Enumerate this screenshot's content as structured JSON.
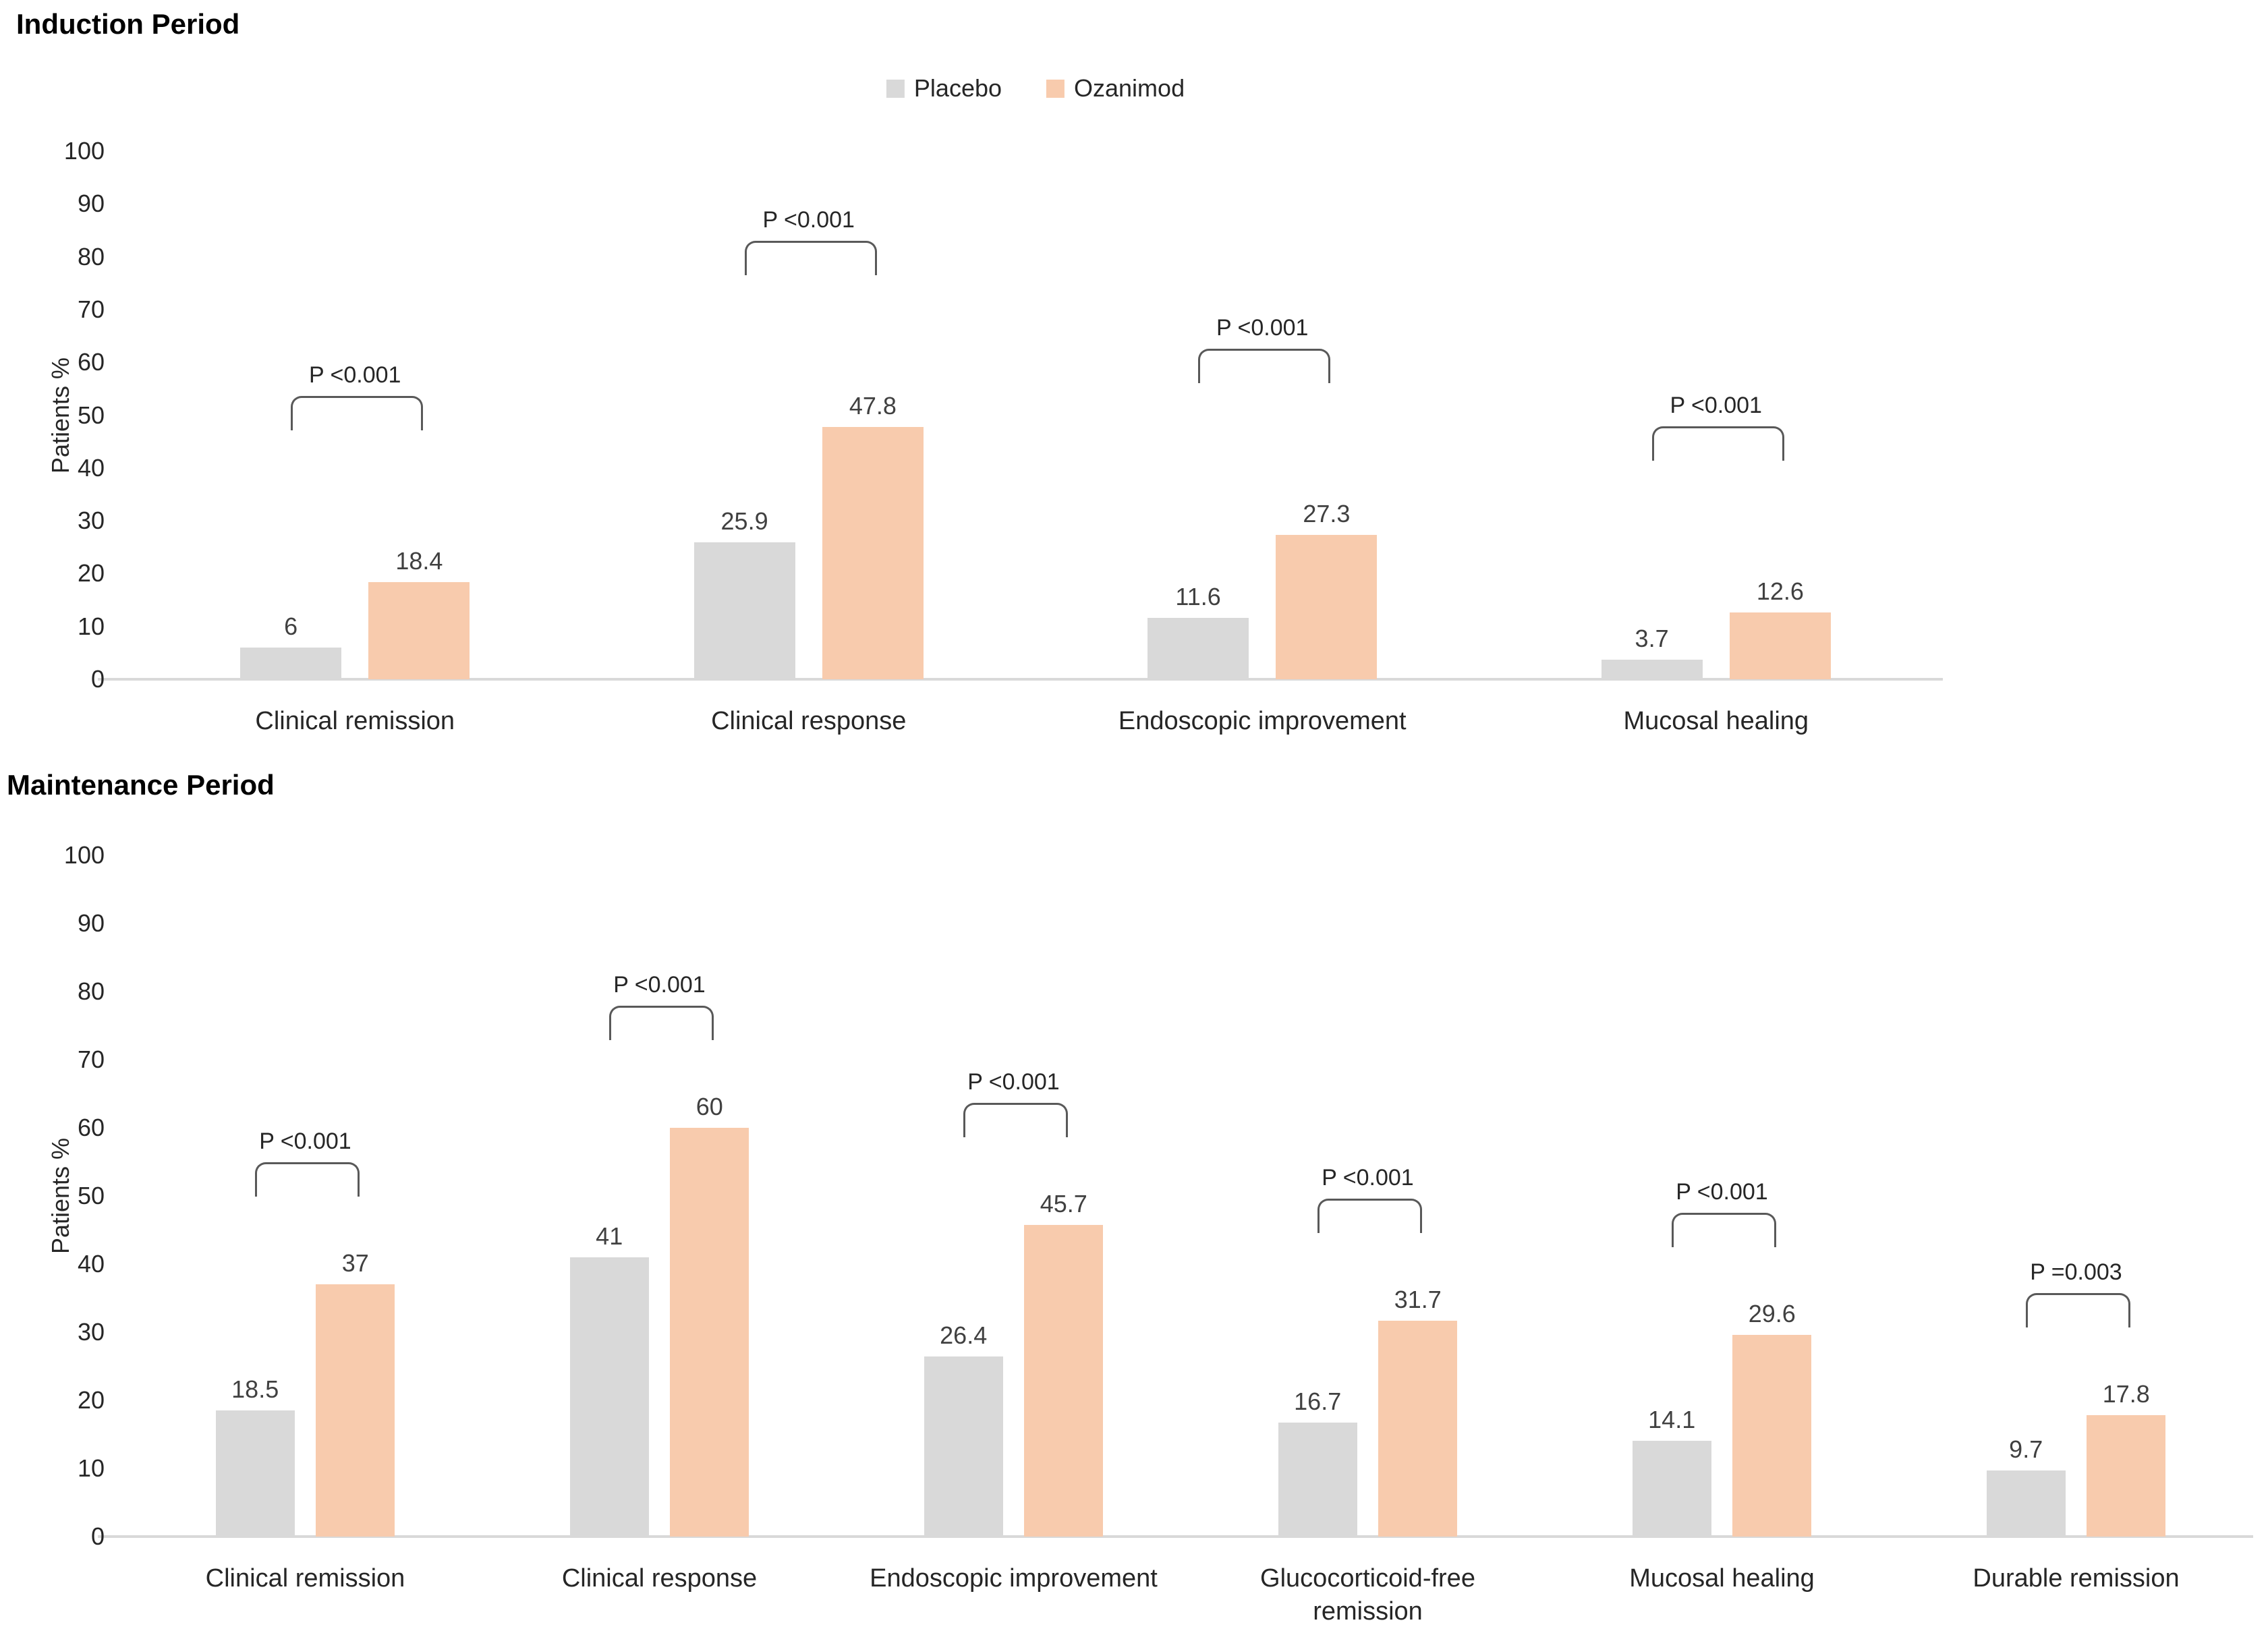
{
  "chart_data": [
    {
      "type": "bar",
      "title": "Induction Period",
      "ylabel": "Patients %",
      "ylim": [
        0,
        100
      ],
      "yticks": [
        0,
        10,
        20,
        30,
        40,
        50,
        60,
        70,
        80,
        90,
        100
      ],
      "grid": false,
      "legend": {
        "position": "top-center",
        "entries": [
          {
            "label": "Placebo",
            "color": "#D9D9D9"
          },
          {
            "label": "Ozanimod",
            "color": "#F8CBAD"
          }
        ]
      },
      "categories": [
        "Clinical remission",
        "Clinical response",
        "Endoscopic improvement",
        "Mucosal healing"
      ],
      "series": [
        {
          "name": "Placebo",
          "color": "#D9D9D9",
          "values": [
            6,
            25.9,
            11.6,
            3.7
          ]
        },
        {
          "name": "Ozanimod",
          "color": "#F8CBAD",
          "values": [
            18.4,
            47.8,
            27.3,
            12.6
          ]
        }
      ],
      "p_values": [
        "P <0.001",
        "P <0.001",
        "P <0.001",
        "P <0.001"
      ]
    },
    {
      "type": "bar",
      "title": "Maintenance Period",
      "ylabel": "Patients %",
      "ylim": [
        0,
        100
      ],
      "yticks": [
        0,
        10,
        20,
        30,
        40,
        50,
        60,
        70,
        80,
        90,
        100
      ],
      "grid": false,
      "legend": null,
      "categories": [
        "Clinical remission",
        "Clinical response",
        "Endoscopic improvement",
        "Glucocorticoid-free remission",
        "Mucosal healing",
        "Durable remission"
      ],
      "series": [
        {
          "name": "Placebo",
          "color": "#D9D9D9",
          "values": [
            18.5,
            41,
            26.4,
            16.7,
            14.1,
            9.7
          ]
        },
        {
          "name": "Ozanimod",
          "color": "#F8CBAD",
          "values": [
            37,
            60,
            45.7,
            31.7,
            29.6,
            17.8
          ]
        }
      ],
      "p_values": [
        "P <0.001",
        "P <0.001",
        "P <0.001",
        "P <0.001",
        "P <0.001",
        "P =0.003"
      ]
    }
  ]
}
